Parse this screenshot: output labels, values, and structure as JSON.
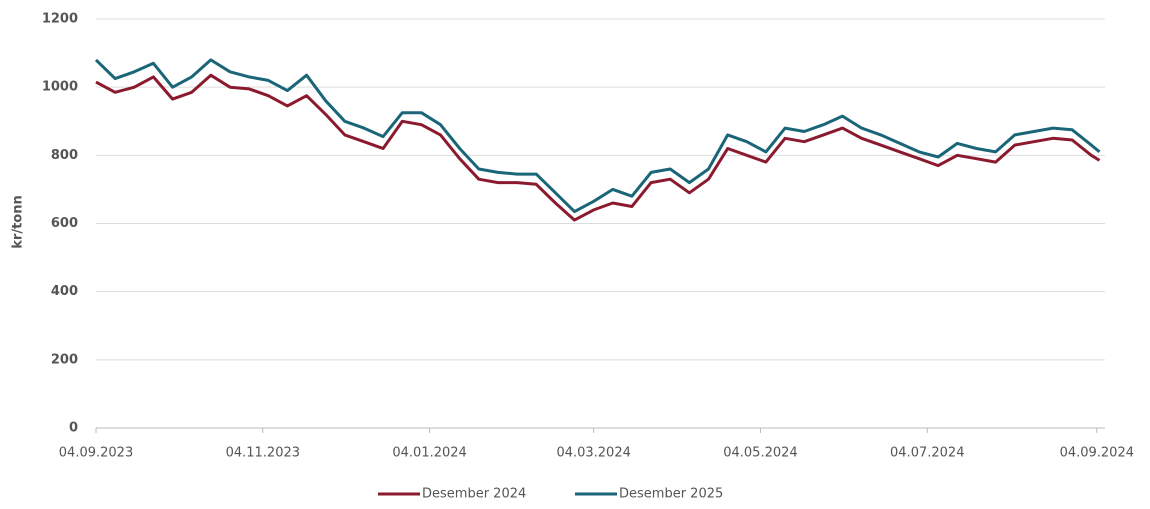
{
  "chart_data": {
    "type": "line",
    "y_label": "kr/tonn",
    "x": [
      "04.09.2023",
      "11.09.2023",
      "18.09.2023",
      "25.09.2023",
      "02.10.2023",
      "09.10.2023",
      "16.10.2023",
      "23.10.2023",
      "30.10.2023",
      "06.11.2023",
      "13.11.2023",
      "20.11.2023",
      "27.11.2023",
      "04.12.2023",
      "11.12.2023",
      "18.12.2023",
      "25.12.2023",
      "01.01.2024",
      "08.01.2024",
      "15.01.2024",
      "22.01.2024",
      "29.01.2024",
      "05.02.2024",
      "12.02.2024",
      "19.02.2024",
      "26.02.2024",
      "04.03.2024",
      "11.03.2024",
      "18.03.2024",
      "25.03.2024",
      "01.04.2024",
      "08.04.2024",
      "15.04.2024",
      "22.04.2024",
      "29.04.2024",
      "06.05.2024",
      "13.05.2024",
      "20.05.2024",
      "27.05.2024",
      "03.06.2024",
      "10.06.2024",
      "17.06.2024",
      "24.06.2024",
      "01.07.2024",
      "08.07.2024",
      "15.07.2024",
      "22.07.2024",
      "29.07.2024",
      "05.08.2024",
      "12.08.2024",
      "19.08.2024",
      "26.08.2024",
      "02.09.2024",
      "05.09.2024"
    ],
    "series": [
      {
        "name": "Desember 2024",
        "color": "#8b1a2f",
        "values": [
          1015,
          985,
          1000,
          1030,
          965,
          985,
          1035,
          1000,
          995,
          975,
          945,
          975,
          920,
          860,
          840,
          820,
          900,
          890,
          860,
          790,
          730,
          720,
          720,
          715,
          660,
          610,
          640,
          660,
          650,
          720,
          730,
          690,
          730,
          820,
          800,
          780,
          850,
          840,
          860,
          880,
          850,
          830,
          810,
          790,
          770,
          800,
          790,
          780,
          830,
          840,
          850,
          845,
          800,
          785
        ]
      },
      {
        "name": "Desember 2025",
        "color": "#1a6678",
        "values": [
          1080,
          1025,
          1045,
          1070,
          1000,
          1030,
          1080,
          1045,
          1030,
          1020,
          990,
          1035,
          960,
          900,
          880,
          855,
          925,
          925,
          890,
          820,
          760,
          750,
          745,
          745,
          690,
          635,
          665,
          700,
          680,
          750,
          760,
          720,
          760,
          860,
          840,
          810,
          880,
          870,
          890,
          915,
          880,
          860,
          835,
          810,
          795,
          835,
          820,
          810,
          860,
          870,
          880,
          875,
          830,
          810
        ]
      }
    ],
    "xlim": [
      "04.09.2023",
      "07.09.2024"
    ],
    "xticks": [
      "04.09.2023",
      "04.11.2023",
      "04.01.2024",
      "04.03.2024",
      "04.05.2024",
      "04.07.2024",
      "04.09.2024"
    ],
    "ylim": [
      0,
      1200
    ],
    "yticks": [
      0,
      200,
      400,
      600,
      800,
      1000,
      1200
    ],
    "grid": true,
    "legend": "bottom"
  }
}
